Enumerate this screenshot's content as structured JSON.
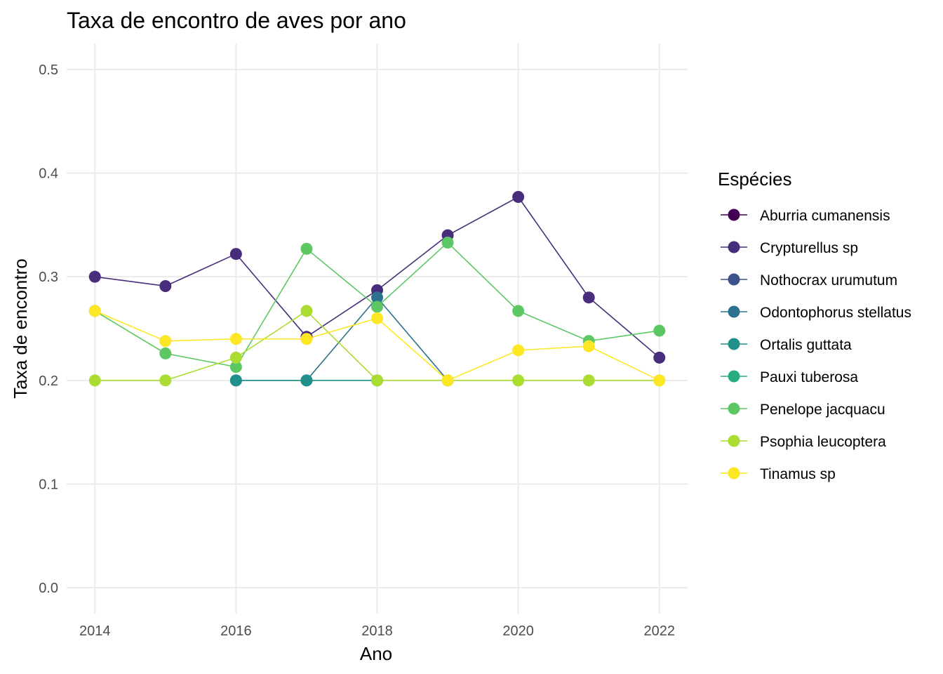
{
  "chart_data": {
    "type": "line",
    "title": "Taxa de encontro de aves por ano",
    "xlabel": "Ano",
    "ylabel": "Taxa de encontro",
    "xlim": [
      2013.6,
      2022.4
    ],
    "ylim": [
      -0.025,
      0.525
    ],
    "x_ticks": [
      2014,
      2016,
      2018,
      2020,
      2022
    ],
    "x_tick_labels": [
      "2014",
      "2016",
      "2018",
      "2020",
      "2022"
    ],
    "y_ticks": [
      0.0,
      0.1,
      0.2,
      0.3,
      0.4,
      0.5
    ],
    "y_tick_labels": [
      "0.0",
      "0.1",
      "0.2",
      "0.3",
      "0.4",
      "0.5"
    ],
    "grid": true,
    "legend_title": "Espécies",
    "legend_position": "right",
    "series": [
      {
        "name": "Aburria cumanensis",
        "color": "#440154",
        "points": []
      },
      {
        "name": "Crypturellus sp",
        "color": "#472D7B",
        "points": [
          [
            2014,
            0.3
          ],
          [
            2015,
            0.291
          ],
          [
            2016,
            0.322
          ],
          [
            2017,
            0.242
          ],
          [
            2018,
            0.287
          ],
          [
            2019,
            0.34
          ],
          [
            2020,
            0.377
          ],
          [
            2021,
            0.28
          ],
          [
            2022,
            0.222
          ]
        ]
      },
      {
        "name": "Nothocrax urumutum",
        "color": "#3B528B",
        "points": []
      },
      {
        "name": "Odontophorus stellatus",
        "color": "#2C728E",
        "points": [
          [
            2016,
            0.2
          ],
          [
            2017,
            0.2
          ],
          [
            2018,
            0.28
          ],
          [
            2019,
            0.2
          ]
        ]
      },
      {
        "name": "Ortalis guttata",
        "color": "#21908C",
        "points": [
          [
            2016,
            0.2
          ],
          [
            2017,
            0.2
          ],
          [
            2018,
            0.2
          ]
        ]
      },
      {
        "name": "Pauxi tuberosa",
        "color": "#27AD81",
        "points": []
      },
      {
        "name": "Penelope jacquacu",
        "color": "#5DC863",
        "points": [
          [
            2014,
            0.267
          ],
          [
            2015,
            0.226
          ],
          [
            2016,
            0.213
          ],
          [
            2017,
            0.327
          ],
          [
            2018,
            0.271
          ],
          [
            2019,
            0.333
          ],
          [
            2020,
            0.267
          ],
          [
            2021,
            0.238
          ],
          [
            2022,
            0.248
          ]
        ]
      },
      {
        "name": "Psophia leucoptera",
        "color": "#AADC32",
        "points": [
          [
            2014,
            0.2
          ],
          [
            2015,
            0.2
          ],
          [
            2016,
            0.222
          ],
          [
            2017,
            0.267
          ],
          [
            2018,
            0.2
          ],
          [
            2019,
            0.2
          ],
          [
            2020,
            0.2
          ],
          [
            2021,
            0.2
          ],
          [
            2022,
            0.2
          ]
        ]
      },
      {
        "name": "Tinamus sp",
        "color": "#FDE725",
        "points": [
          [
            2014,
            0.267
          ],
          [
            2015,
            0.238
          ],
          [
            2016,
            0.24
          ],
          [
            2017,
            0.24
          ],
          [
            2018,
            0.26
          ],
          [
            2019,
            0.2
          ],
          [
            2020,
            0.229
          ],
          [
            2021,
            0.233
          ],
          [
            2022,
            0.2
          ]
        ]
      }
    ]
  }
}
